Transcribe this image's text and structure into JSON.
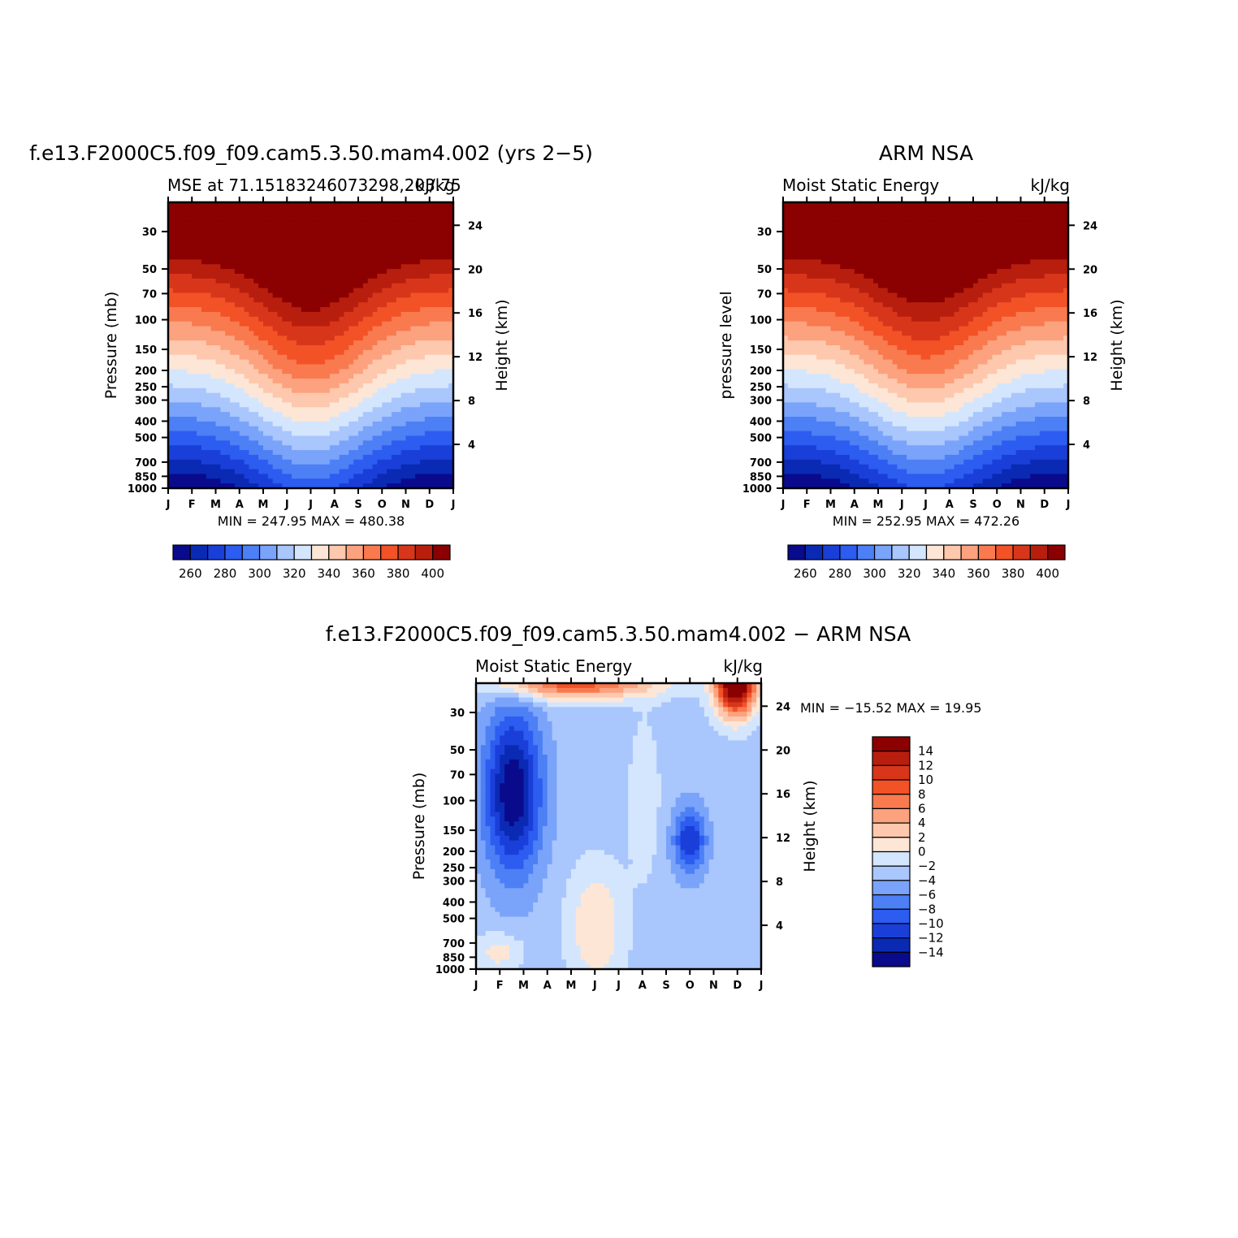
{
  "chart_data": [
    {
      "type": "contour",
      "id": "model",
      "title": "f.e13.F2000C5.f09_f09.cam5.3.50.mam4.002 (yrs 2−5)",
      "subtitle_left": "MSE at 71.15183246073298,203.75",
      "subtitle_right": "kJ/kg",
      "ylabel": "Pressure (mb)",
      "ylabel_right": "Height (km)",
      "months": [
        "J",
        "F",
        "M",
        "A",
        "M",
        "J",
        "J",
        "A",
        "S",
        "O",
        "N",
        "D",
        "J"
      ],
      "pressure_ticks": [
        "30",
        "50",
        "70",
        "100",
        "150",
        "200",
        "250",
        "300",
        "400",
        "500",
        "700",
        "850",
        "1000"
      ],
      "height_ticks": [
        "24",
        "20",
        "16",
        "12",
        "8",
        "4"
      ],
      "min_max_text": "MIN = 247.95 MAX = 480.38",
      "min": 247.95,
      "max": 480.38,
      "colorbar_labels": [
        "260",
        "280",
        "300",
        "320",
        "340",
        "360",
        "380",
        "400"
      ]
    },
    {
      "type": "contour",
      "id": "obs",
      "title": "ARM NSA",
      "subtitle_left": "Moist Static Energy",
      "subtitle_right": "kJ/kg",
      "ylabel": "pressure level",
      "ylabel_right": "Height (km)",
      "months": [
        "J",
        "F",
        "M",
        "A",
        "M",
        "J",
        "J",
        "A",
        "S",
        "O",
        "N",
        "D",
        "J"
      ],
      "pressure_ticks": [
        "30",
        "50",
        "70",
        "100",
        "150",
        "200",
        "250",
        "300",
        "400",
        "500",
        "700",
        "850",
        "1000"
      ],
      "height_ticks": [
        "24",
        "20",
        "16",
        "12",
        "8",
        "4"
      ],
      "min_max_text": "MIN = 252.95 MAX = 472.26",
      "min": 252.95,
      "max": 472.26,
      "colorbar_labels": [
        "260",
        "280",
        "300",
        "320",
        "340",
        "360",
        "380",
        "400"
      ]
    },
    {
      "type": "contour",
      "id": "diff",
      "title": "f.e13.F2000C5.f09_f09.cam5.3.50.mam4.002 − ARM NSA",
      "subtitle_left": "Moist Static Energy",
      "subtitle_right": "kJ/kg",
      "ylabel": "Pressure (mb)",
      "ylabel_right": "Height (km)",
      "months": [
        "J",
        "F",
        "M",
        "A",
        "M",
        "J",
        "J",
        "A",
        "S",
        "O",
        "N",
        "D",
        "J"
      ],
      "pressure_ticks": [
        "30",
        "50",
        "70",
        "100",
        "150",
        "200",
        "250",
        "300",
        "400",
        "500",
        "700",
        "850",
        "1000"
      ],
      "height_ticks": [
        "24",
        "20",
        "16",
        "12",
        "8",
        "4"
      ],
      "min_max_text": "MIN = −15.52 MAX =   19.95",
      "min": -15.52,
      "max": 19.95,
      "colorbar_labels": [
        "14",
        "12",
        "10",
        "8",
        "6",
        "4",
        "2",
        "0",
        "−2",
        "−4",
        "−6",
        "−8",
        "−10",
        "−12",
        "−14"
      ]
    }
  ],
  "palette": [
    "#0a0a8c",
    "#0a2ab4",
    "#1a3fd9",
    "#2c5cf0",
    "#4d7ff5",
    "#7aa3fa",
    "#a9c6fd",
    "#d4e6fd",
    "#fde6d6",
    "#fdc8ad",
    "#fca27e",
    "#f97a4f",
    "#f25226",
    "#d8361a",
    "#b81e0e",
    "#8b0000"
  ]
}
